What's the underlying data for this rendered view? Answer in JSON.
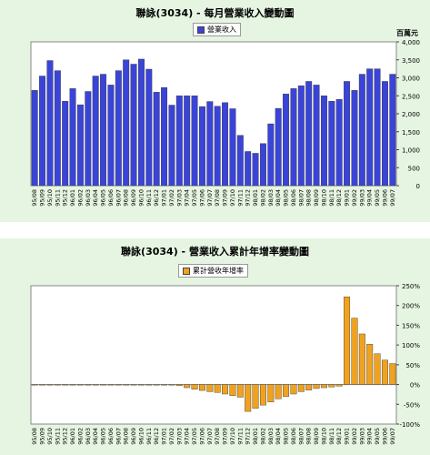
{
  "chart_data": [
    {
      "type": "bar",
      "title": "聯詠(3034) - 每月營業收入變動圖",
      "legend": "營業收入",
      "legend_position": "top-center",
      "unit": "百萬元",
      "ylim": [
        0,
        4000
      ],
      "yticks": [
        "0",
        "500",
        "1,000",
        "1,500",
        "2,000",
        "2,500",
        "3,000",
        "3,500",
        "4,000"
      ],
      "categories": [
        "95/08",
        "95/09",
        "95/10",
        "95/11",
        "95/12",
        "96/01",
        "96/02",
        "96/03",
        "96/04",
        "96/05",
        "96/06",
        "96/07",
        "96/08",
        "96/09",
        "96/10",
        "96/11",
        "96/12",
        "97/01",
        "97/02",
        "97/03",
        "97/04",
        "97/05",
        "97/06",
        "97/07",
        "97/08",
        "97/09",
        "97/10",
        "97/11",
        "97/12",
        "98/01",
        "98/02",
        "98/03",
        "98/04",
        "98/05",
        "98/06",
        "98/07",
        "98/08",
        "98/09",
        "98/10",
        "98/11",
        "98/12",
        "99/01",
        "99/02",
        "99/03",
        "99/04",
        "99/05",
        "99/06",
        "99/07"
      ],
      "values": [
        2650,
        3050,
        3480,
        3200,
        2350,
        2700,
        2250,
        2620,
        3050,
        3100,
        2800,
        3200,
        3500,
        3380,
        3520,
        3240,
        2600,
        2730,
        2240,
        2500,
        2500,
        2500,
        2200,
        2340,
        2210,
        2310,
        2140,
        1400,
        950,
        900,
        1170,
        1720,
        2150,
        2550,
        2700,
        2780,
        2900,
        2800,
        2500,
        2350,
        2400,
        2900,
        2650,
        3100,
        3250,
        3250,
        2900,
        3100
      ],
      "grid": false,
      "color": "#3a44d8"
    },
    {
      "type": "bar",
      "title": "聯詠(3034) - 營業收入累計年增率變動圖",
      "legend": "累計營收年增率",
      "legend_position": "top-center",
      "ylim": [
        -100,
        250
      ],
      "yticks": [
        "-100%",
        "-50%",
        "0%",
        "50%",
        "100%",
        "150%",
        "200%",
        "250%"
      ],
      "categories": [
        "95/08",
        "95/09",
        "95/10",
        "95/11",
        "95/12",
        "96/01",
        "96/02",
        "96/03",
        "96/04",
        "96/05",
        "96/06",
        "96/07",
        "96/08",
        "96/09",
        "96/10",
        "96/11",
        "96/12",
        "97/01",
        "97/02",
        "97/03",
        "97/04",
        "97/05",
        "97/06",
        "97/07",
        "97/08",
        "97/09",
        "97/10",
        "97/11",
        "97/12",
        "98/01",
        "98/02",
        "98/03",
        "98/04",
        "98/05",
        "98/06",
        "98/07",
        "98/08",
        "98/09",
        "98/10",
        "98/11",
        "98/12",
        "99/01",
        "99/02",
        "99/03",
        "99/04",
        "99/05",
        "99/06",
        "99/07"
      ],
      "values": [
        0,
        0,
        0,
        0,
        0,
        0,
        0,
        0,
        0,
        0,
        0,
        0,
        0,
        0,
        0,
        0,
        0,
        0,
        0,
        -3,
        -8,
        -12,
        -15,
        -18,
        -20,
        -24,
        -28,
        -32,
        -68,
        -60,
        -52,
        -44,
        -36,
        -30,
        -24,
        -18,
        -14,
        -10,
        -8,
        -6,
        -4,
        222,
        168,
        128,
        102,
        78,
        62,
        53
      ],
      "grid": false,
      "color": "#f0a21e"
    }
  ]
}
